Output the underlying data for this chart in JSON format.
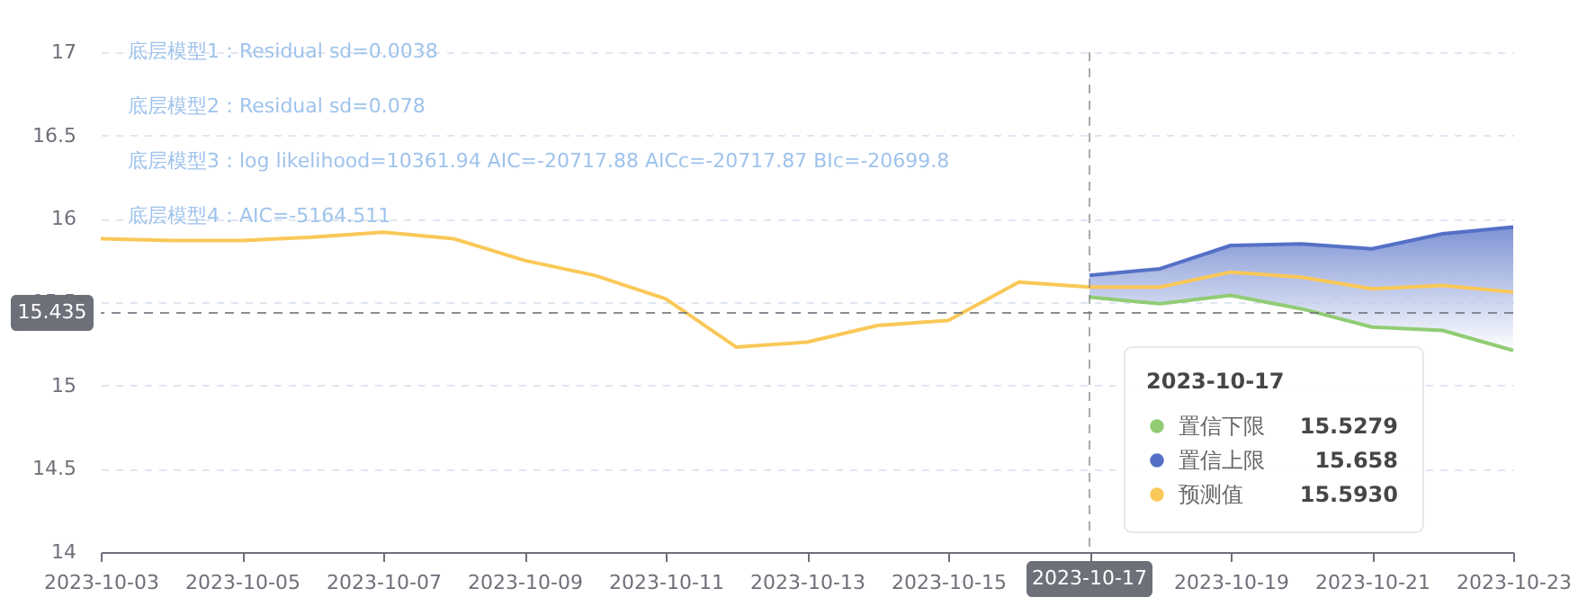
{
  "chart_data": {
    "type": "line",
    "annotations": [
      "底层模型1：Residual sd=0.0038",
      "底层模型2：Residual sd=0.078",
      "底层模型3：log likelihood=10361.94 AIC=-20717.88 AICc=-20717.87 BIc=-20699.8",
      "底层模型4：AIC=-5164.511",
      "15.5279",
      "15.658",
      "15.5930"
    ],
    "x": [
      "2023-10-03",
      "2023-10-04",
      "2023-10-05",
      "2023-10-06",
      "2023-10-07",
      "2023-10-08",
      "2023-10-09",
      "2023-10-10",
      "2023-10-11",
      "2023-10-12",
      "2023-10-13",
      "2023-10-14",
      "2023-10-15",
      "2023-10-16",
      "2023-10-17",
      "2023-10-18",
      "2023-10-19",
      "2023-10-20",
      "2023-10-21",
      "2023-10-22",
      "2023-10-23"
    ],
    "series": [
      {
        "name": "置信下限",
        "color": "#91cc75",
        "x": [
          "2023-10-17",
          "2023-10-18",
          "2023-10-19",
          "2023-10-20",
          "2023-10-21",
          "2023-10-22",
          "2023-10-23"
        ],
        "values": [
          15.53,
          15.49,
          15.54,
          15.46,
          15.35,
          15.33,
          15.21
        ]
      },
      {
        "name": "置信上限",
        "type": "area",
        "color": "#5470c6",
        "x": [
          "2023-10-17",
          "2023-10-18",
          "2023-10-19",
          "2023-10-20",
          "2023-10-21",
          "2023-10-22",
          "2023-10-23"
        ],
        "values": [
          15.66,
          15.7,
          15.84,
          15.85,
          15.82,
          15.91,
          15.95
        ]
      },
      {
        "name": "预测值",
        "color": "#fac858",
        "values": [
          15.88,
          15.87,
          15.87,
          15.89,
          15.92,
          15.88,
          15.75,
          15.66,
          15.52,
          15.23,
          15.26,
          15.36,
          15.39,
          15.62,
          15.59,
          15.59,
          15.68,
          15.65,
          15.58,
          15.6,
          15.56
        ]
      }
    ],
    "xlim": [
      "2023-10-03",
      "2023-10-23"
    ],
    "xticks": [
      "2023-10-03",
      "2023-10-05",
      "2023-10-07",
      "2023-10-09",
      "2023-10-11",
      "2023-10-13",
      "2023-10-15",
      "2023-10-17",
      "2023-10-19",
      "2023-10-21",
      "2023-10-23"
    ],
    "ylim": [
      14,
      17
    ],
    "yticks": [
      14,
      14.5,
      15,
      15.5,
      16,
      16.5,
      17
    ],
    "ref_lines": [
      {
        "axis": "y",
        "value": 15.435,
        "label": "15.435",
        "color": "#6e7079",
        "line_style": "dashed"
      },
      {
        "axis": "x",
        "value": "2023-10-17",
        "label": "2023-10-17",
        "color": "#6e7079",
        "line_style": "dashed"
      }
    ],
    "grid": "y",
    "legend": "bottom right"
  }
}
